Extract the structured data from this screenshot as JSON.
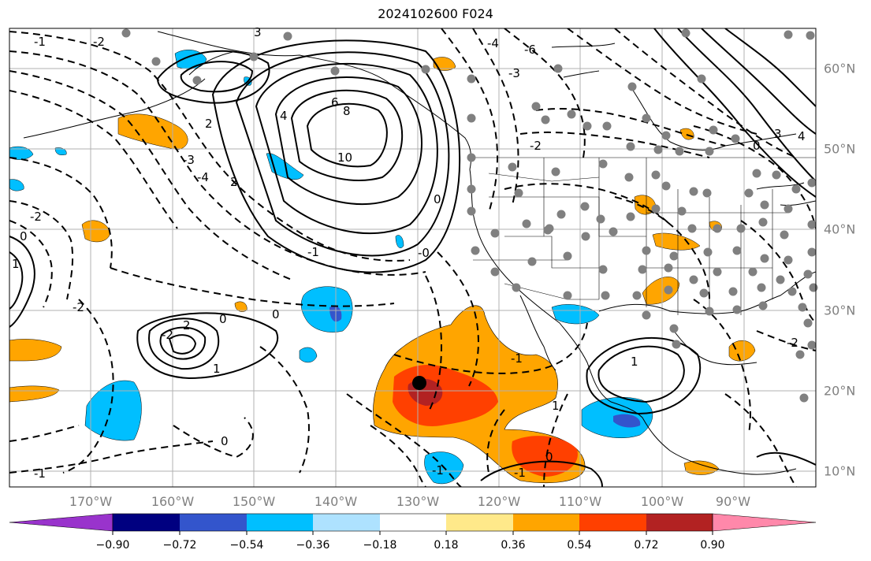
{
  "title": "2024102600 F024",
  "longitude_labels": [
    "170°W",
    "160°W",
    "150°W",
    "140°W",
    "130°W",
    "120°W",
    "110°W",
    "100°W",
    "90°W"
  ],
  "latitude_labels": [
    "60°N",
    "50°N",
    "40°N",
    "30°N",
    "20°N",
    "10°N"
  ],
  "colorbar": {
    "ticks": [
      "−0.90",
      "−0.72",
      "−0.54",
      "−0.36",
      "−0.18",
      "0.18",
      "0.36",
      "0.54",
      "0.72",
      "0.90"
    ],
    "colors": [
      "#9933cc",
      "#000080",
      "#3355cc",
      "#00bfff",
      "#aee2ff",
      "#ffffff",
      "#ffe98a",
      "#ffa500",
      "#ff4000",
      "#b22222",
      "#ff88aa"
    ]
  },
  "contour_labels": [
    "-1",
    "-2",
    "-3",
    "-4",
    "6",
    "8",
    "10",
    "4",
    "2",
    "0",
    "-1",
    "-2",
    "2",
    "1",
    "0",
    "0",
    "-2",
    "-2",
    "0",
    "1",
    "-1",
    "0",
    "-0",
    "1",
    "-4",
    "-3",
    "-2",
    "3",
    "2",
    "1",
    "-1",
    "0",
    "3",
    "-6",
    "4",
    "-1",
    "0",
    "-2",
    "-1"
  ],
  "fill_colors": {
    "orange": "#ffa500",
    "red": "#ff4000",
    "darkred": "#b22222",
    "cyan": "#00bfff",
    "blue": "#3355cc",
    "light": "#aee2ff"
  },
  "map_markers": {
    "station_color": "#808080",
    "center_marker_color": "#000000"
  }
}
